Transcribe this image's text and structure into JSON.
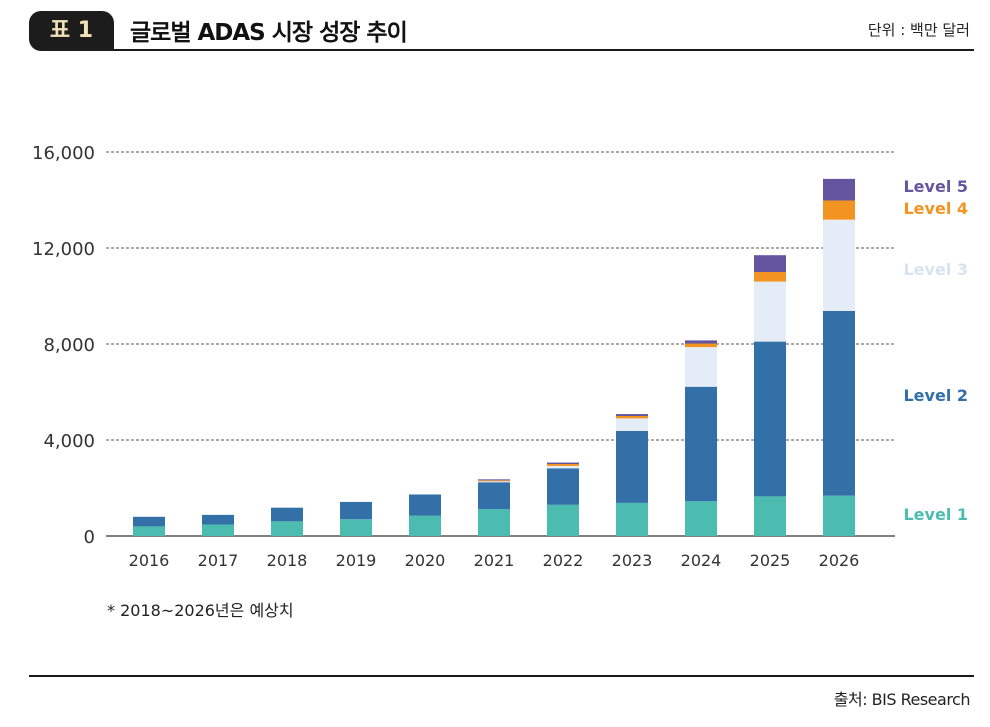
{
  "header": {
    "badge": "표 1",
    "title": "글로벌 ADAS 시장 성장 추이",
    "unit": "단위 : 백만 달러"
  },
  "footnote": "* 2018~2026년은 예상치",
  "source": "출처: BIS Research",
  "chart_data": {
    "type": "bar",
    "stacked": true,
    "title": "글로벌 ADAS 시장 성장 추이",
    "xlabel": "",
    "ylabel": "",
    "categories": [
      "2016",
      "2017",
      "2018",
      "2019",
      "2020",
      "2021",
      "2022",
      "2023",
      "2024",
      "2025",
      "2026"
    ],
    "ylim": [
      0,
      16000
    ],
    "yticks": [
      0,
      4000,
      8000,
      12000,
      16000
    ],
    "ytick_labels": [
      "0",
      "4,000",
      "8,000",
      "12,000",
      "16,000"
    ],
    "grid": "horizontal dashed",
    "legend_position": "right",
    "series": [
      {
        "name": "Level 1",
        "color": "#4dbcb0",
        "values": [
          400,
          480,
          610,
          700,
          850,
          1120,
          1300,
          1380,
          1450,
          1650,
          1680
        ]
      },
      {
        "name": "Level 2",
        "color": "#3270a7",
        "values": [
          400,
          400,
          570,
          720,
          880,
          1120,
          1520,
          3000,
          4770,
          6450,
          7700
        ]
      },
      {
        "name": "Level 3",
        "color": "#e4edf7",
        "values": [
          0,
          0,
          0,
          0,
          0,
          40,
          100,
          520,
          1650,
          2500,
          3800
        ]
      },
      {
        "name": "Level 4",
        "color": "#f39422",
        "values": [
          0,
          0,
          0,
          0,
          0,
          40,
          80,
          100,
          150,
          400,
          800
        ]
      },
      {
        "name": "Level 5",
        "color": "#63559f",
        "values": [
          0,
          0,
          0,
          0,
          0,
          40,
          60,
          80,
          130,
          700,
          900
        ]
      }
    ]
  }
}
